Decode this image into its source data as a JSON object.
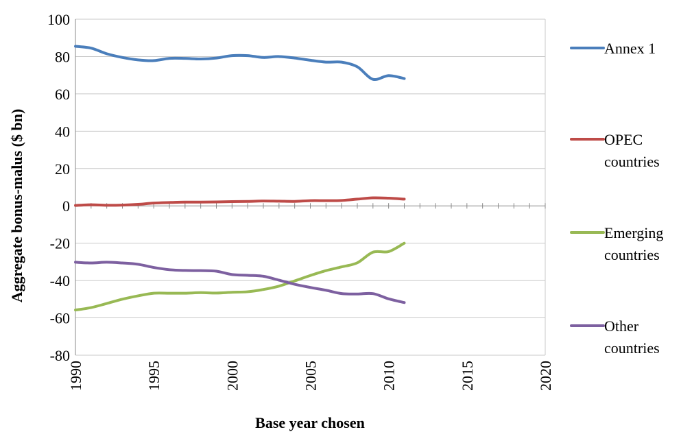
{
  "chart_data": {
    "type": "line",
    "title": "",
    "xlabel": "Base year chosen",
    "ylabel": "Aggregate bonus-malus ($ bn)",
    "xlim": [
      1990,
      2020
    ],
    "ylim": [
      -80,
      100
    ],
    "x_ticks": [
      1990,
      1995,
      2000,
      2005,
      2010,
      2015,
      2020
    ],
    "y_ticks": [
      100,
      80,
      60,
      40,
      20,
      0,
      -20,
      -40,
      -60,
      -80
    ],
    "grid": "horizontal",
    "legend_position": "right",
    "x": [
      1990,
      1991,
      1992,
      1993,
      1994,
      1995,
      1996,
      1997,
      1998,
      1999,
      2000,
      2001,
      2002,
      2003,
      2004,
      2005,
      2006,
      2007,
      2008,
      2009,
      2010,
      2011
    ],
    "series": [
      {
        "name": "Annex 1",
        "legend_lines": [
          "Annex 1"
        ],
        "color": "#4a7ebb",
        "values": [
          85.5,
          84.5,
          81.5,
          79.5,
          78.2,
          77.8,
          79.0,
          79.0,
          78.7,
          79.2,
          80.5,
          80.5,
          79.5,
          80.0,
          79.2,
          78.0,
          77.0,
          77.0,
          74.5,
          67.8,
          69.8,
          68.2
        ]
      },
      {
        "name": "OPEC countries",
        "legend_lines": [
          "OPEC",
          "countries"
        ],
        "color": "#be4b48",
        "values": [
          0.2,
          0.6,
          0.3,
          0.4,
          0.8,
          1.5,
          1.8,
          2.0,
          2.0,
          2.1,
          2.3,
          2.4,
          2.6,
          2.5,
          2.4,
          2.8,
          2.8,
          2.9,
          3.6,
          4.3,
          4.1,
          3.6
        ]
      },
      {
        "name": "Emerging countries",
        "legend_lines": [
          "Emerging",
          "countries"
        ],
        "color": "#98b954",
        "values": [
          -55.8,
          -54.5,
          -52.3,
          -50.0,
          -48.2,
          -46.8,
          -46.8,
          -46.8,
          -46.5,
          -46.7,
          -46.3,
          -46.0,
          -44.8,
          -43.0,
          -40.2,
          -37.3,
          -34.7,
          -32.7,
          -30.5,
          -24.8,
          -24.5,
          -20.0
        ]
      },
      {
        "name": "Other countries",
        "legend_lines": [
          "Other",
          "countries"
        ],
        "color": "#7d60a0",
        "values": [
          -30.2,
          -30.6,
          -30.2,
          -30.6,
          -31.3,
          -33.0,
          -34.2,
          -34.6,
          -34.7,
          -35.0,
          -36.8,
          -37.2,
          -37.7,
          -39.8,
          -42.0,
          -43.7,
          -45.2,
          -47.0,
          -47.2,
          -47.0,
          -49.8,
          -51.8
        ]
      }
    ]
  }
}
